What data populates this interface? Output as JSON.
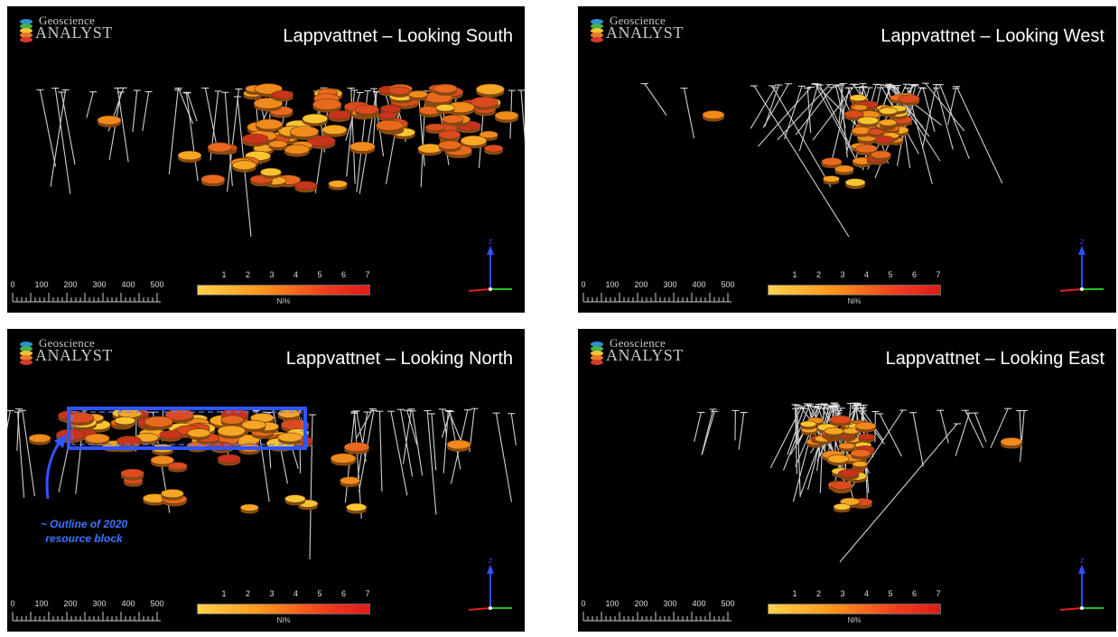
{
  "logo": {
    "line1": "Geoscience",
    "line2": "ANALYST"
  },
  "panels": [
    {
      "title": "Lappvattnet – Looking South"
    },
    {
      "title": "Lappvattnet – Looking West"
    },
    {
      "title": "Lappvattnet – Looking North",
      "annotation_line1": "~ Outline of 2020",
      "annotation_line2": "resource block"
    },
    {
      "title": "Lappvattnet – Looking East"
    }
  ],
  "scale_bar": {
    "ticks": [
      "0",
      "100",
      "200",
      "300",
      "400",
      "500"
    ]
  },
  "legend": {
    "ticks": [
      "1",
      "2",
      "3",
      "4",
      "5",
      "6",
      "7"
    ],
    "label": "Ni%"
  },
  "colors": {
    "background": "#000000",
    "drillhole": "#d8d8d8",
    "annotation": "#3d74ff",
    "legend_low": "#ffd24d",
    "legend_high": "#e01a1a"
  },
  "icons": [
    "geoscience-analyst-logo-icon",
    "axis-triad-icon"
  ]
}
